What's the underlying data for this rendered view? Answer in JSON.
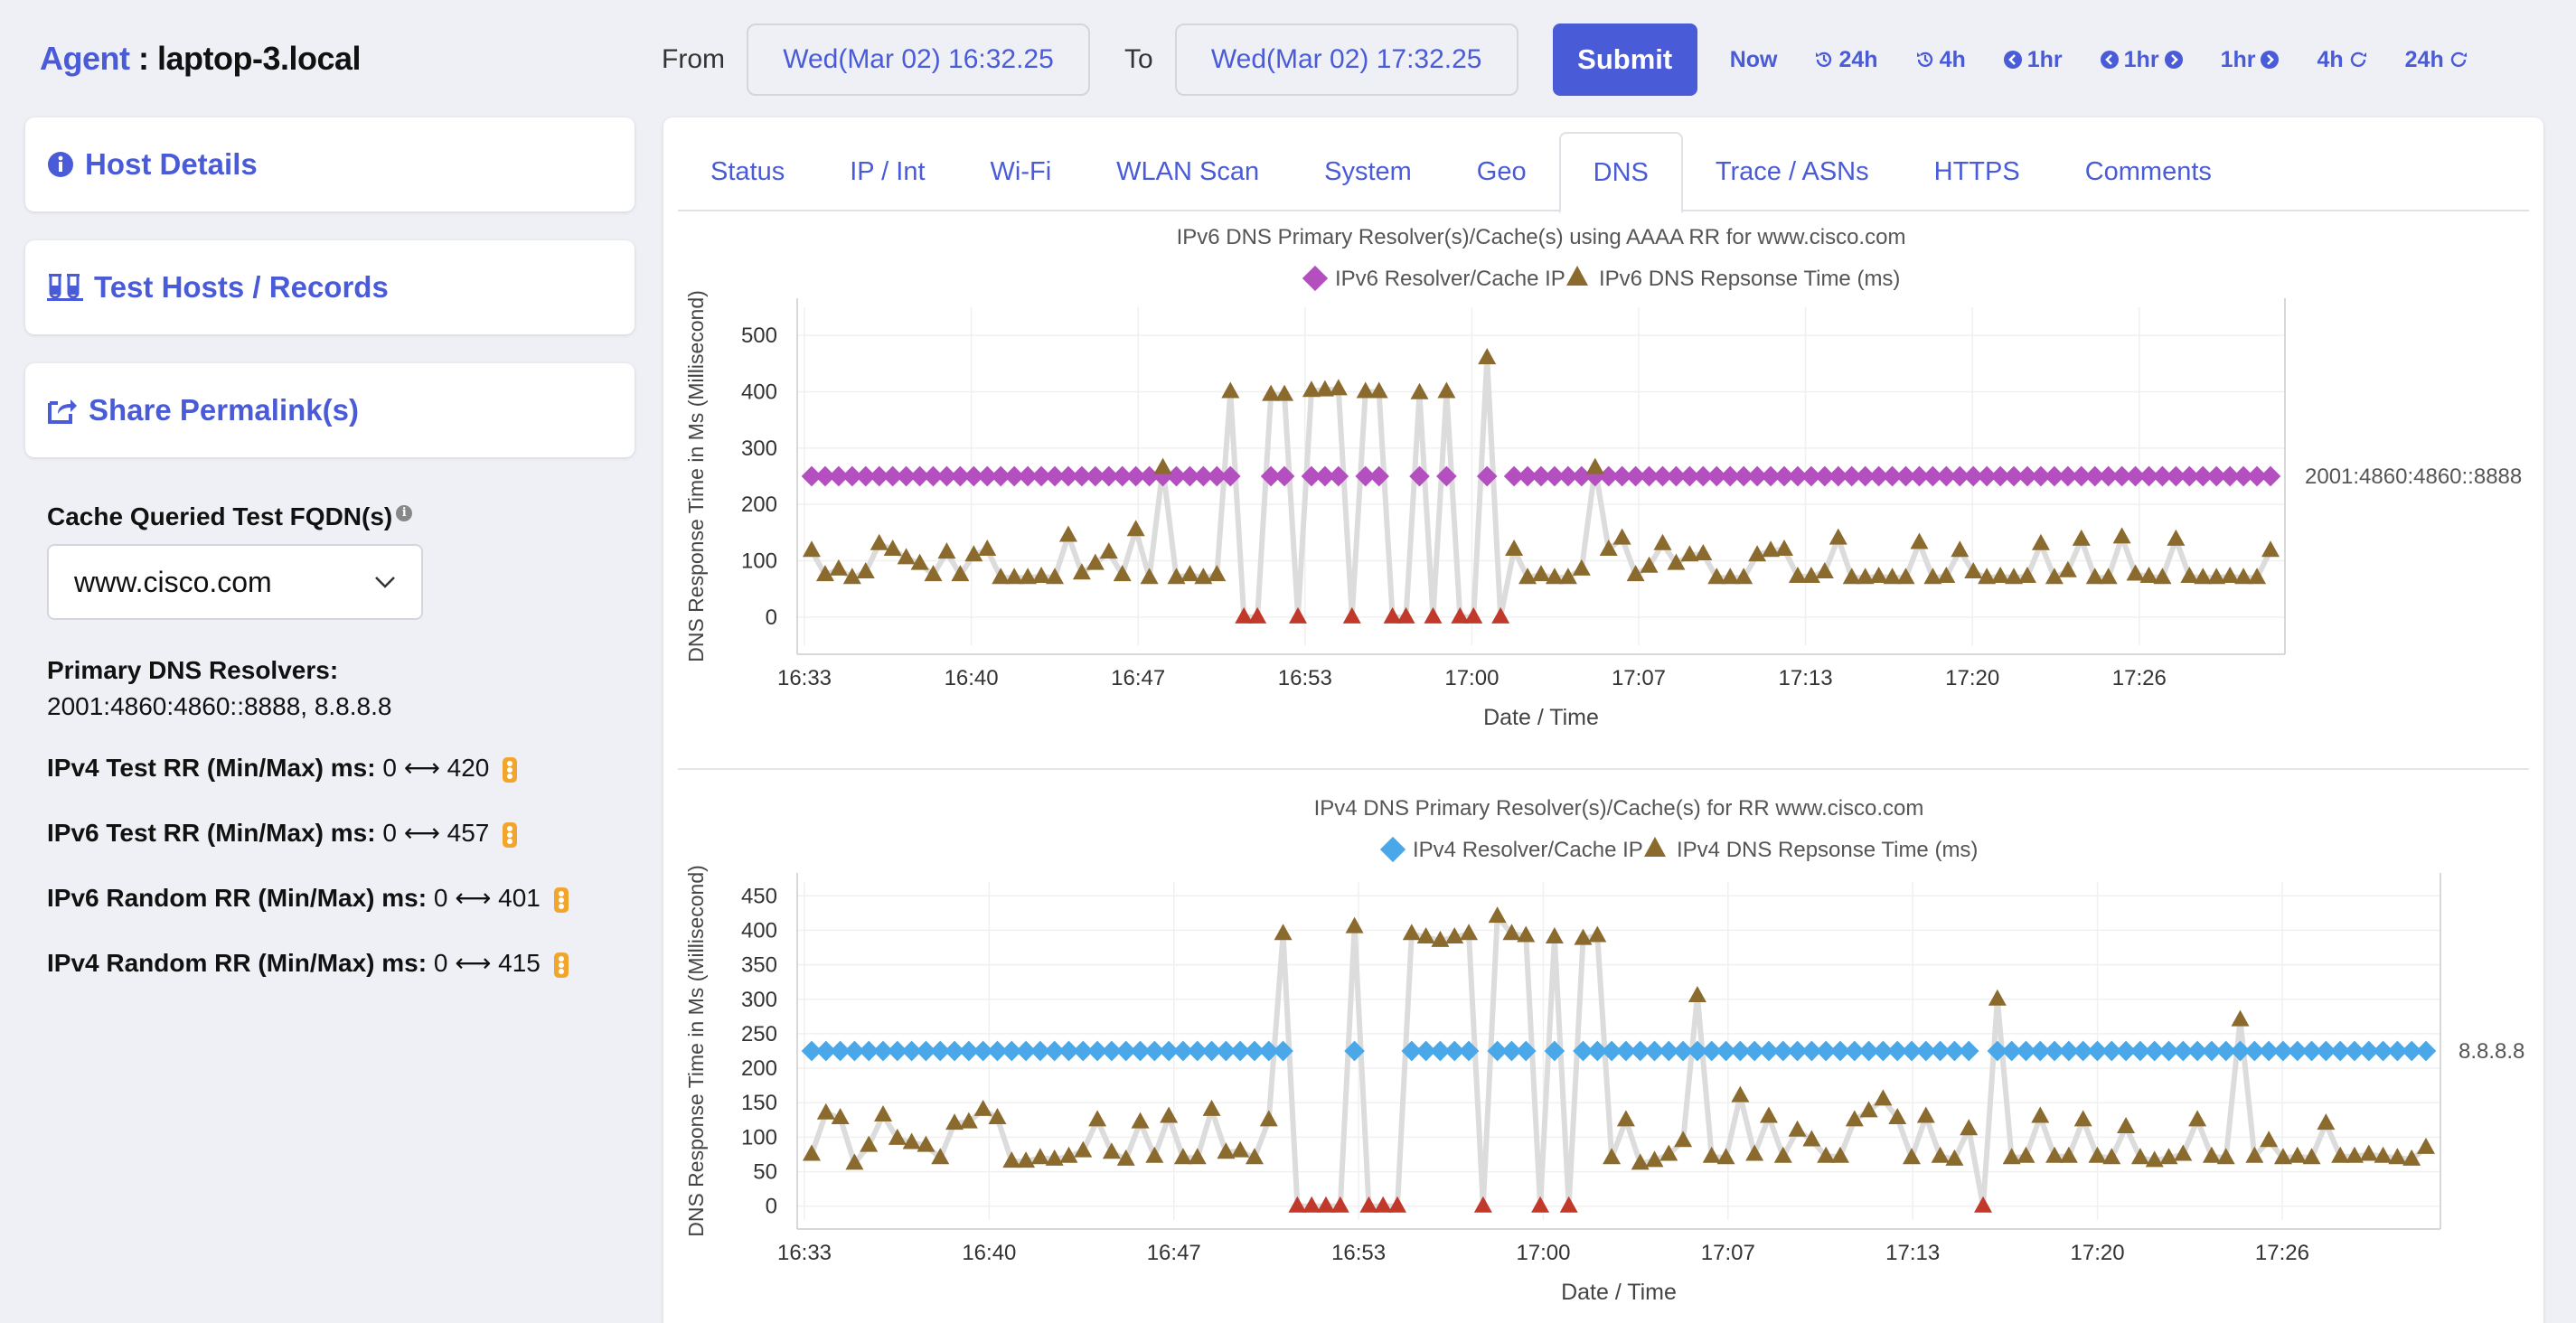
{
  "agent": {
    "label": "Agent",
    "host": "laptop-3.local"
  },
  "sidebar": {
    "cards": [
      {
        "label": "Host Details",
        "icon": "info-icon"
      },
      {
        "label": "Test Hosts / Records",
        "icon": "flask-icon"
      },
      {
        "label": "Share Permalink(s)",
        "icon": "share-icon"
      }
    ],
    "cache_label": "Cache Queried Test FQDN(s)",
    "fqdn_selected": "www.cisco.com",
    "resolvers_label": "Primary DNS Resolvers:",
    "resolvers_value": "2001:4860:4860::8888, 8.8.8.8",
    "stats": [
      {
        "label": "IPv4 Test RR (Min/Max) ms:",
        "min": "0",
        "max": "420"
      },
      {
        "label": "IPv6 Test RR (Min/Max) ms:",
        "min": "0",
        "max": "457"
      },
      {
        "label": "IPv6 Random RR (Min/Max) ms:",
        "min": "0",
        "max": "401"
      },
      {
        "label": "IPv4 Random RR (Min/Max) ms:",
        "min": "0",
        "max": "415"
      }
    ],
    "arrow": "⟷"
  },
  "topbar": {
    "from_label": "From",
    "from_value": "Wed(Mar 02) 16:32.25",
    "to_label": "To",
    "to_value": "Wed(Mar 02) 17:32.25",
    "submit": "Submit",
    "quick": [
      "Now",
      "24h",
      "4h",
      "1hr",
      "1hr",
      "1hr",
      "4h",
      "24h"
    ]
  },
  "tabs": [
    "Status",
    "IP / Int",
    "Wi-Fi",
    "WLAN Scan",
    "System",
    "Geo",
    "DNS",
    "Trace / ASNs",
    "HTTPS",
    "Comments"
  ],
  "active_tab": "DNS",
  "colors": {
    "accent": "#4a5bd8",
    "ipv6_marker": "#b44fc0",
    "ipv4_marker": "#4aa8e8",
    "resp_marker": "#8b6a2e",
    "zero_marker": "#c0392b",
    "line": "#dcdcdc"
  },
  "chart_data": [
    {
      "type": "line",
      "title": "IPv6 DNS Primary Resolver(s)/Cache(s) using AAAA RR for www.cisco.com",
      "legend": [
        "IPv6 Resolver/Cache IP",
        "IPv6 DNS Repsonse Time (ms)"
      ],
      "xlabel": "Date / Time",
      "ylabel": "DNS Response Time in Ms (Millisecond)",
      "x_ticks": [
        "16:33",
        "16:40",
        "16:47",
        "16:53",
        "17:00",
        "17:07",
        "17:13",
        "17:20",
        "17:26"
      ],
      "y_ticks": [
        0,
        100,
        200,
        300,
        400,
        500
      ],
      "ylim": [
        -50,
        550
      ],
      "resolver_label": "2001:4860:4860::8888",
      "resolver_level": 250,
      "x_range": [
        16.4,
        76.3
      ],
      "series": [
        {
          "name": "IPv6 DNS Repsonse Time (ms)",
          "values": [
            118,
            75,
            85,
            70,
            80,
            130,
            120,
            105,
            95,
            75,
            115,
            75,
            110,
            120,
            70,
            70,
            70,
            72,
            70,
            145,
            78,
            95,
            115,
            75,
            155,
            70,
            265,
            70,
            75,
            70,
            75,
            400,
            0,
            0,
            395,
            395,
            0,
            402,
            403,
            405,
            0,
            400,
            400,
            0,
            0,
            398,
            0,
            400,
            0,
            0,
            460,
            0,
            120,
            70,
            75,
            70,
            70,
            85,
            265,
            120,
            140,
            75,
            90,
            130,
            95,
            110,
            112,
            70,
            70,
            70,
            110,
            118,
            120,
            72,
            72,
            80,
            140,
            70,
            70,
            72,
            70,
            70,
            132,
            70,
            72,
            118,
            80,
            70,
            72,
            70,
            72,
            130,
            70,
            82,
            138,
            70,
            70,
            142,
            76,
            72,
            70,
            138,
            72,
            70,
            70,
            72,
            70,
            70,
            118
          ]
        }
      ]
    },
    {
      "type": "line",
      "title": "IPv4 DNS Primary Resolver(s)/Cache(s) for RR www.cisco.com",
      "legend": [
        "IPv4 Resolver/Cache IP",
        "IPv4 DNS Repsonse Time (ms)"
      ],
      "xlabel": "Date / Time",
      "ylabel": "DNS Response Time in Ms (Millisecond)",
      "x_ticks": [
        "16:33",
        "16:40",
        "16:47",
        "16:53",
        "17:00",
        "17:07",
        "17:13",
        "17:20",
        "17:26"
      ],
      "y_ticks": [
        0,
        50,
        100,
        150,
        200,
        250,
        300,
        350,
        400,
        450
      ],
      "ylim": [
        -20,
        470
      ],
      "resolver_label": "8.8.8.8",
      "resolver_level": 225,
      "x_range": [
        16.4,
        86.3
      ],
      "series": [
        {
          "name": "IPv4 DNS Repsonse Time (ms)",
          "values": [
            75,
            135,
            128,
            62,
            88,
            132,
            98,
            92,
            88,
            70,
            120,
            122,
            140,
            128,
            65,
            65,
            70,
            68,
            72,
            80,
            125,
            78,
            68,
            122,
            72,
            130,
            70,
            70,
            140,
            78,
            80,
            70,
            125,
            395,
            0,
            0,
            0,
            0,
            405,
            0,
            0,
            0,
            395,
            390,
            385,
            390,
            395,
            0,
            420,
            395,
            392,
            0,
            390,
            0,
            388,
            392,
            70,
            125,
            62,
            66,
            75,
            95,
            305,
            72,
            70,
            160,
            75,
            130,
            72,
            110,
            96,
            72,
            72,
            125,
            138,
            155,
            128,
            70,
            130,
            72,
            68,
            112,
            0,
            300,
            70,
            72,
            130,
            72,
            72,
            125,
            72,
            70,
            115,
            70,
            66,
            70,
            75,
            125,
            72,
            70,
            270,
            72,
            95,
            70,
            72,
            70,
            120,
            72,
            72,
            75,
            72,
            70,
            68,
            85
          ]
        }
      ]
    }
  ]
}
